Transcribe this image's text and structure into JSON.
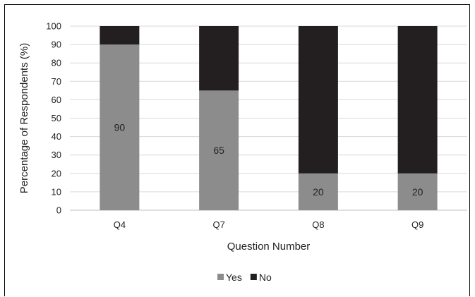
{
  "chart_data": {
    "type": "bar",
    "stacked": true,
    "title": "",
    "xlabel": "Question Number",
    "ylabel": "Percentage of Respondents (%)",
    "categories": [
      "Q4",
      "Q7",
      "Q8",
      "Q9"
    ],
    "ylim": [
      0,
      100
    ],
    "yticks": [
      0,
      10,
      20,
      30,
      40,
      50,
      60,
      70,
      80,
      90,
      100
    ],
    "grid": true,
    "legend_position": "bottom",
    "series": [
      {
        "name": "Yes",
        "values": [
          90,
          65,
          20,
          20
        ],
        "color": "#8c8c8c",
        "data_labels": [
          "90",
          "65",
          "20",
          "20"
        ]
      },
      {
        "name": "No",
        "values": [
          10,
          35,
          80,
          80
        ],
        "color": "#231f20"
      }
    ]
  }
}
